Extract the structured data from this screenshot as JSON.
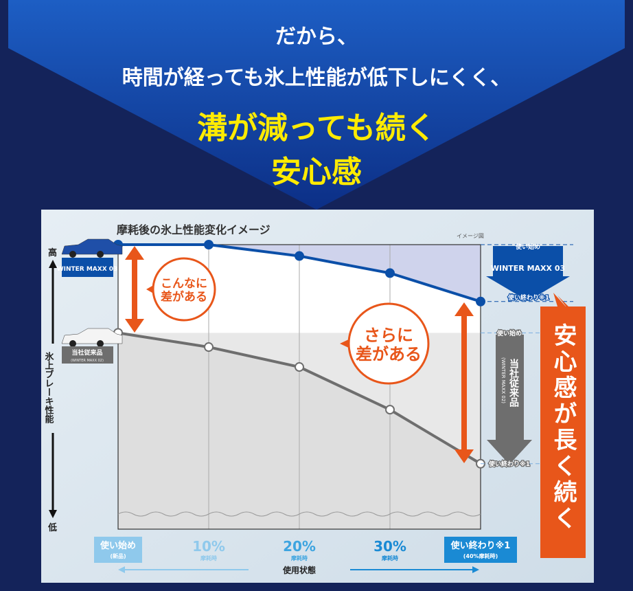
{
  "header": {
    "line1": "だから、",
    "line2": "時間が経っても氷上性能が低下しにくく、",
    "line3": "溝が減っても続く",
    "line4": "安心感"
  },
  "colors": {
    "navy": "#14235a",
    "blue": "#0b4fa8",
    "orange": "#e8561a",
    "gray": "#6e6e6e",
    "yellow": "#ffeb00",
    "lightblue": "#8fc9ec"
  },
  "chart_data": {
    "type": "line",
    "title": "摩耗後の氷上性能変化イメージ",
    "note": "イメージ図",
    "xlabel": "使用状態",
    "ylabel": "氷上ブレーキ性能",
    "y_high_label": "高",
    "y_low_label": "低",
    "categories": [
      {
        "main": "使い始め",
        "sub": "(新品)"
      },
      {
        "main": "10%",
        "sub": "摩耗時"
      },
      {
        "main": "20%",
        "sub": "摩耗時"
      },
      {
        "main": "30%",
        "sub": "摩耗時"
      },
      {
        "main": "使い終わり※1",
        "sub": "(40%摩耗時)"
      }
    ],
    "ylim": [
      0,
      100
    ],
    "grid": true,
    "series": [
      {
        "name": "WINTER MAXX 03",
        "values": [
          100,
          100,
          96,
          90,
          80
        ],
        "color": "#0b4fa8"
      },
      {
        "name": "当社従来品 (WINTER MAXX 02)",
        "values": [
          69,
          64,
          57,
          42,
          23
        ],
        "color": "#6e6e6e"
      }
    ],
    "annotations": {
      "gap1": [
        "こんなに",
        "差がある"
      ],
      "gap2": [
        "さらに",
        "差がある"
      ],
      "start": "使い始め",
      "end": "使い終わり※1",
      "wm03_logo": "WINTER MAXX 03",
      "old_label": "当社従来品",
      "old_sub": "(WINTER MAXX 02)",
      "side_banner": "安心感が長く続く"
    }
  }
}
